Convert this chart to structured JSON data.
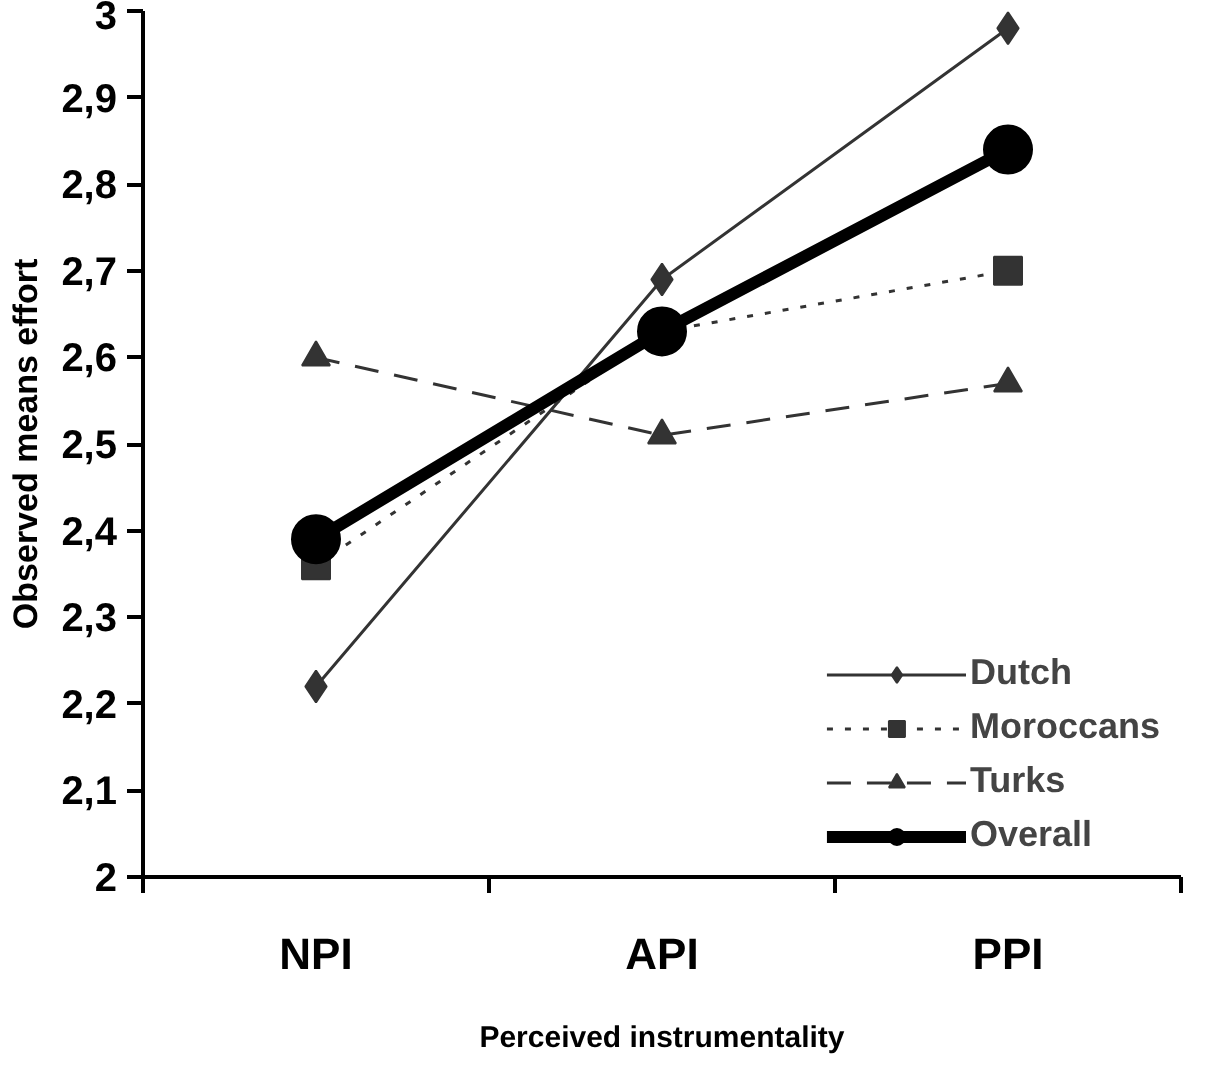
{
  "chart_data": {
    "type": "line",
    "xlabel": "Perceived instrumentality",
    "ylabel": "Observed means effort",
    "categories": [
      "NPI",
      "API",
      "PPI"
    ],
    "series": [
      {
        "name": "Dutch",
        "color": "#333333",
        "values": [
          2.22,
          2.69,
          2.98
        ],
        "marker": "diamond",
        "line_style": "solid"
      },
      {
        "name": "Moroccans",
        "color": "#333333",
        "values": [
          2.36,
          2.63,
          2.7
        ],
        "marker": "square",
        "line_style": "dotted"
      },
      {
        "name": "Turks",
        "color": "#333333",
        "values": [
          2.6,
          2.51,
          2.57
        ],
        "marker": "triangle",
        "line_style": "dashed"
      },
      {
        "name": "Overall",
        "color": "#000000",
        "values": [
          2.39,
          2.63,
          2.84
        ],
        "marker": "circle",
        "line_style": "solid"
      }
    ],
    "ylim": [
      2,
      3
    ],
    "yticks": [
      {
        "value": 2,
        "label": "2"
      },
      {
        "value": 2.1,
        "label": "2,1"
      },
      {
        "value": 2.2,
        "label": "2,2"
      },
      {
        "value": 2.3,
        "label": "2,3"
      },
      {
        "value": 2.4,
        "label": "2,4"
      },
      {
        "value": 2.5,
        "label": "2,5"
      },
      {
        "value": 2.6,
        "label": "2,6"
      },
      {
        "value": 2.7,
        "label": "2,7"
      },
      {
        "value": 2.8,
        "label": "2,8"
      },
      {
        "value": 2.9,
        "label": "2,9"
      },
      {
        "value": 3,
        "label": "3"
      }
    ],
    "grid": false,
    "legend": "bottom right"
  }
}
